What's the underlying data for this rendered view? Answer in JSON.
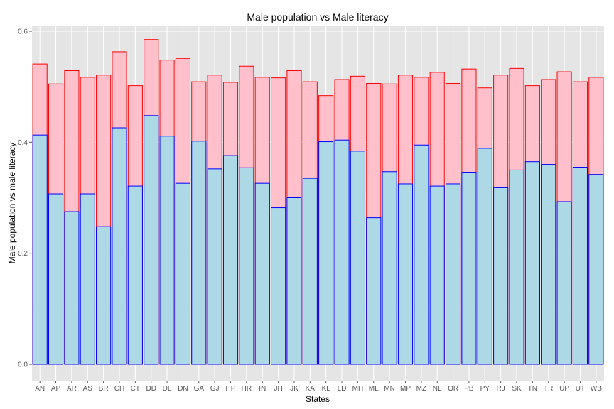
{
  "chart_data": {
    "type": "bar",
    "title": "Male population vs Male literacy",
    "xlabel": "States",
    "ylabel": "Male population vs male literacy",
    "ylim": [
      0,
      0.6
    ],
    "yticks": [
      0.0,
      0.2,
      0.4,
      0.6
    ],
    "ytick_labels": [
      "0.0",
      "0.2",
      "0.4",
      "0.6"
    ],
    "grid": true,
    "categories": [
      "AN",
      "AP",
      "AR",
      "AS",
      "BR",
      "CH",
      "CT",
      "DD",
      "DL",
      "DN",
      "GA",
      "GJ",
      "HP",
      "HR",
      "IN",
      "JH",
      "JK",
      "KA",
      "KL",
      "LD",
      "MH",
      "ML",
      "MN",
      "MP",
      "MZ",
      "NL",
      "OR",
      "PB",
      "PY",
      "RJ",
      "SK",
      "TN",
      "TR",
      "UP",
      "UT",
      "WB"
    ],
    "series": [
      {
        "fill": "#FFC0CB",
        "stroke": "#FF0000",
        "values": [
          0.541,
          0.505,
          0.529,
          0.517,
          0.521,
          0.563,
          0.502,
          0.585,
          0.548,
          0.551,
          0.509,
          0.521,
          0.508,
          0.537,
          0.517,
          0.516,
          0.529,
          0.509,
          0.484,
          0.513,
          0.519,
          0.506,
          0.505,
          0.521,
          0.517,
          0.526,
          0.506,
          0.532,
          0.498,
          0.521,
          0.533,
          0.502,
          0.513,
          0.527,
          0.509,
          0.517
        ]
      },
      {
        "fill": "#ADD8E6",
        "stroke": "#0000FF",
        "values": [
          0.413,
          0.307,
          0.275,
          0.307,
          0.248,
          0.426,
          0.321,
          0.448,
          0.411,
          0.326,
          0.402,
          0.352,
          0.376,
          0.354,
          0.326,
          0.282,
          0.3,
          0.335,
          0.401,
          0.404,
          0.384,
          0.264,
          0.347,
          0.325,
          0.395,
          0.321,
          0.325,
          0.346,
          0.389,
          0.318,
          0.35,
          0.365,
          0.36,
          0.293,
          0.355,
          0.342
        ]
      }
    ]
  }
}
